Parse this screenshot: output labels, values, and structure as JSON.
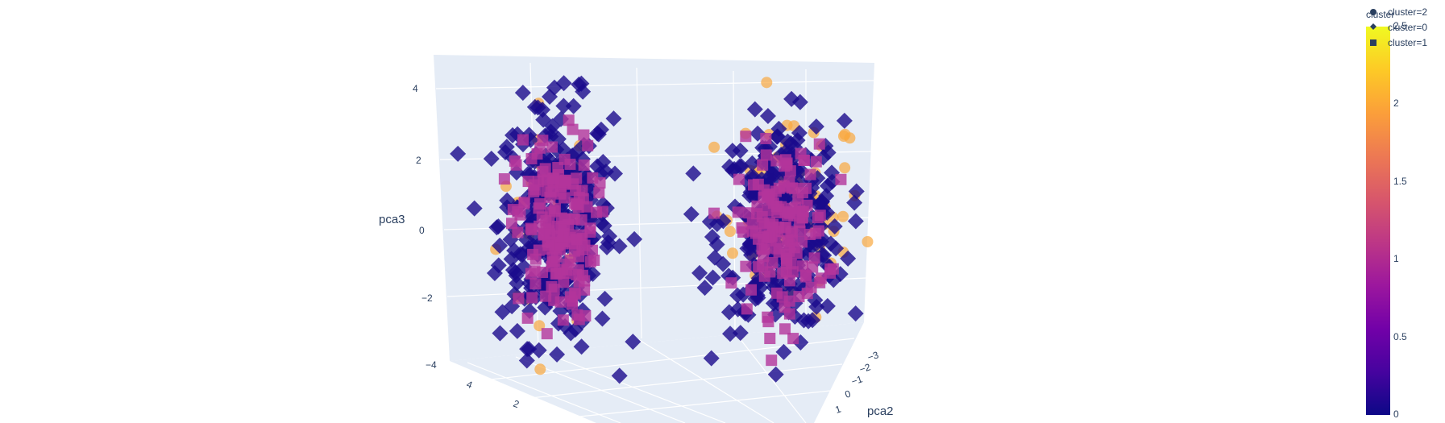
{
  "chart_data": {
    "type": "scatter3d",
    "axes": {
      "y": {
        "title": "pca2",
        "ticks": [
          "−3",
          "−2",
          "−1",
          "0",
          "1"
        ]
      },
      "z": {
        "title": "pca3",
        "ticks": [
          "4",
          "2",
          "0",
          "−2",
          "−4"
        ]
      },
      "x": {
        "title": "",
        "ticks": [
          "4",
          "2"
        ]
      }
    },
    "legend": {
      "title": "cluster",
      "entries": [
        {
          "label": "cluster=2",
          "symbol": "circle"
        },
        {
          "label": "cluster=0",
          "symbol": "diamond"
        },
        {
          "label": "cluster=1",
          "symbol": "square"
        }
      ]
    },
    "colorbar": {
      "ticks": [
        "2.5",
        "2",
        "1.5",
        "1",
        "0.5",
        "0"
      ],
      "range": [
        0,
        2.5
      ],
      "colors": [
        "#0d0887",
        "#46039f",
        "#7201a8",
        "#9c179e",
        "#bd3786",
        "#d8576b",
        "#ed7953",
        "#fb9f3a",
        "#fdca26",
        "#f0f921"
      ]
    },
    "series": [
      {
        "cluster": 2,
        "symbol": "circle",
        "color": "#f9a83f",
        "groups": [
          {
            "pca2": -1.8,
            "pca3": 0.3,
            "n": 30,
            "spread": [
              0.9,
              2.2
            ]
          },
          {
            "pca2": 1.2,
            "pca3": 0.5,
            "n": 60,
            "spread": [
              1.3,
              2.0
            ]
          }
        ]
      },
      {
        "cluster": 0,
        "symbol": "diamond",
        "color": "#1a0a8c",
        "groups": [
          {
            "pca2": -1.7,
            "pca3": 0.2,
            "n": 320,
            "spread": [
              1.0,
              2.3
            ]
          },
          {
            "pca2": 1.1,
            "pca3": 0.1,
            "n": 300,
            "spread": [
              1.1,
              2.0
            ]
          }
        ]
      },
      {
        "cluster": 1,
        "symbol": "square",
        "color": "#b3349b",
        "groups": [
          {
            "pca2": -1.7,
            "pca3": 0.0,
            "n": 170,
            "spread": [
              0.7,
              1.8
            ]
          },
          {
            "pca2": 1.1,
            "pca3": 0.0,
            "n": 150,
            "spread": [
              0.8,
              1.6
            ]
          }
        ]
      }
    ]
  }
}
